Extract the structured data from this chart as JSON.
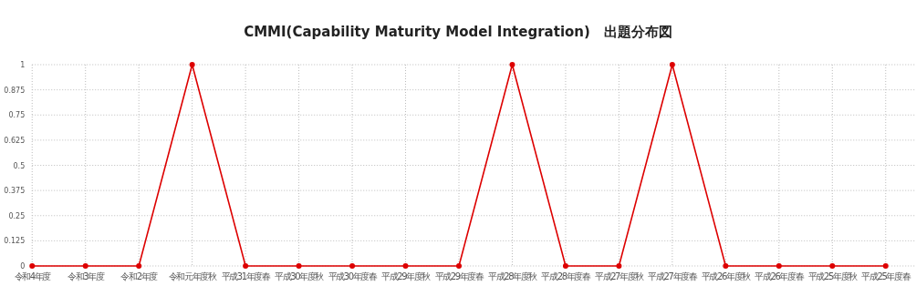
{
  "chart_data": {
    "type": "line",
    "title": "CMMI(Capability Maturity Model Integration)　出題分布図",
    "categories": [
      "令和4年度",
      "令和3年度",
      "令和2年度",
      "令和元年度秋",
      "平成31年度春",
      "平成30年度秋",
      "平成30年度春",
      "平成29年度秋",
      "平成29年度春",
      "平成28年度秋",
      "平成28年度春",
      "平成27年度秋",
      "平成27年度春",
      "平成26年度秋",
      "平成26年度春",
      "平成25年度秋",
      "平成25年度春"
    ],
    "series": [
      {
        "color": "#dd0000",
        "values": [
          0,
          0,
          0,
          1,
          0,
          0,
          0,
          0,
          0,
          1,
          0,
          0,
          1,
          0,
          0,
          0,
          0
        ]
      }
    ],
    "ylim": [
      0,
      1
    ],
    "yticks": [
      0,
      0.125,
      0.25,
      0.375,
      0.5,
      0.625,
      0.75,
      0.875,
      1
    ],
    "grid": true,
    "marker": "circle",
    "line_style": "solid"
  }
}
